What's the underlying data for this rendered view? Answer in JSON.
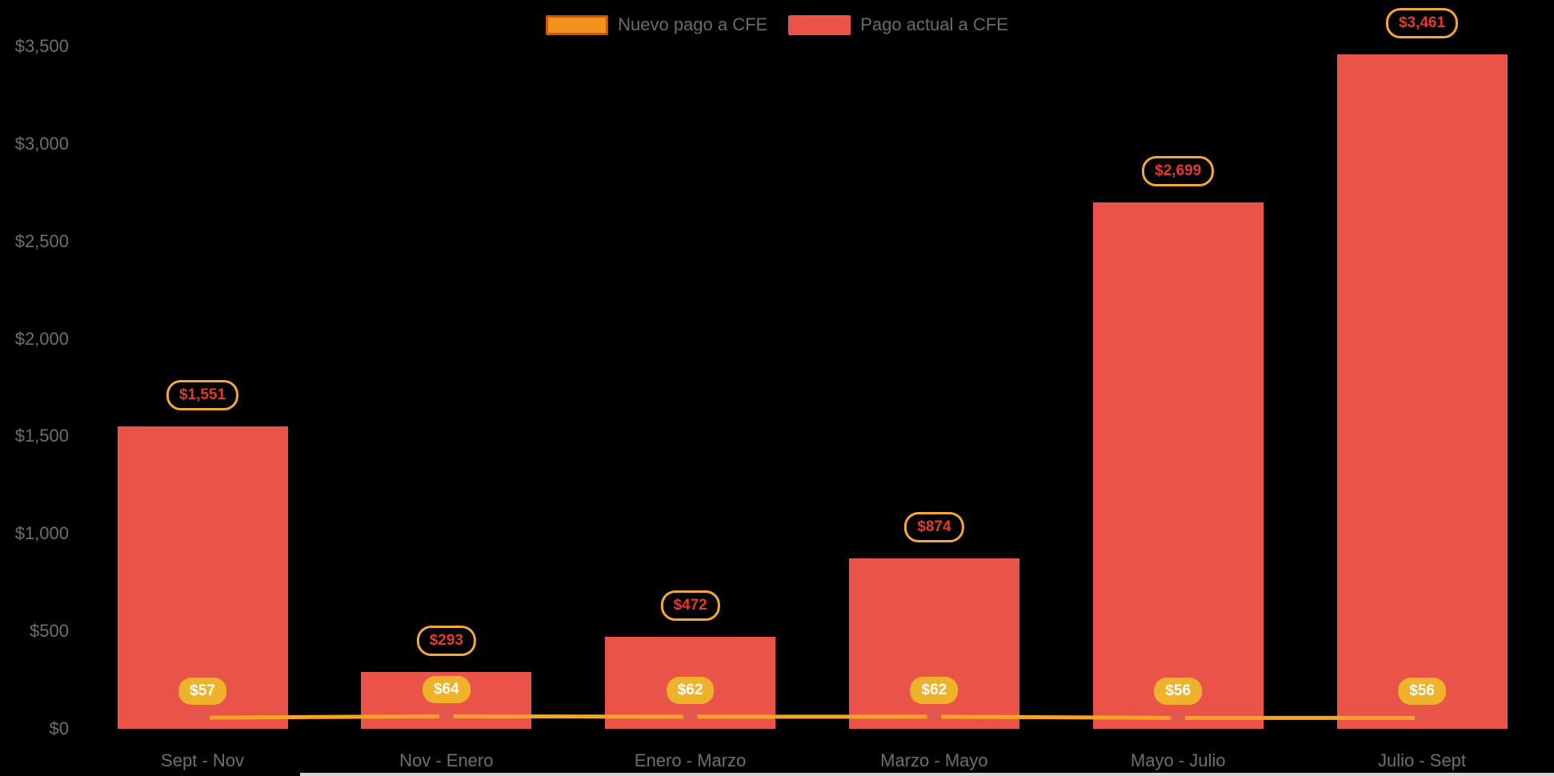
{
  "chart_data": {
    "type": "bar",
    "title": "",
    "categories": [
      "Sept - Nov",
      "Nov - Enero",
      "Enero - Marzo",
      "Marzo - Mayo",
      "Mayo - Julio",
      "Julio - Sept"
    ],
    "series": [
      {
        "name": "Nuevo pago a CFE",
        "type": "line",
        "values": [
          57,
          64,
          62,
          62,
          56,
          56
        ],
        "labels": [
          "$57",
          "$64",
          "$62",
          "$62",
          "$56",
          "$56"
        ],
        "color": "#F5A428"
      },
      {
        "name": "Pago actual a CFE",
        "type": "bar",
        "values": [
          1551,
          293,
          472,
          874,
          2699,
          3461
        ],
        "labels": [
          "$1,551",
          "$293",
          "$472",
          "$874",
          "$2,699",
          "$3,461"
        ],
        "color": "#EA5348"
      }
    ],
    "ylim": [
      0,
      3500
    ],
    "y_ticks": [
      0,
      500,
      1000,
      1500,
      2000,
      2500,
      3000,
      3500
    ],
    "y_tick_labels": [
      "$0",
      "$500",
      "$1,000",
      "$1,500",
      "$2,000",
      "$2,500",
      "$3,000",
      "$3,500"
    ],
    "legend_position": "top",
    "grid": false
  },
  "legend": {
    "items": [
      {
        "label": "Nuevo pago a CFE",
        "fill": "#F0941F",
        "border": "#D35400"
      },
      {
        "label": "Pago actual a CFE",
        "fill": "#EA5348",
        "border": "#EA5348"
      }
    ]
  },
  "colors": {
    "background": "#000000",
    "axis_text": "#6f6f6f",
    "bar": "#EA5348",
    "line": "#F5A428",
    "marker": "#E4574D",
    "bar_label_text": "#E23A2C",
    "bar_label_border": "#F3A73B",
    "bar_label_bg": "#000000",
    "line_label_bg": "#EFB32B",
    "line_label_text": "#FFFFFF"
  }
}
